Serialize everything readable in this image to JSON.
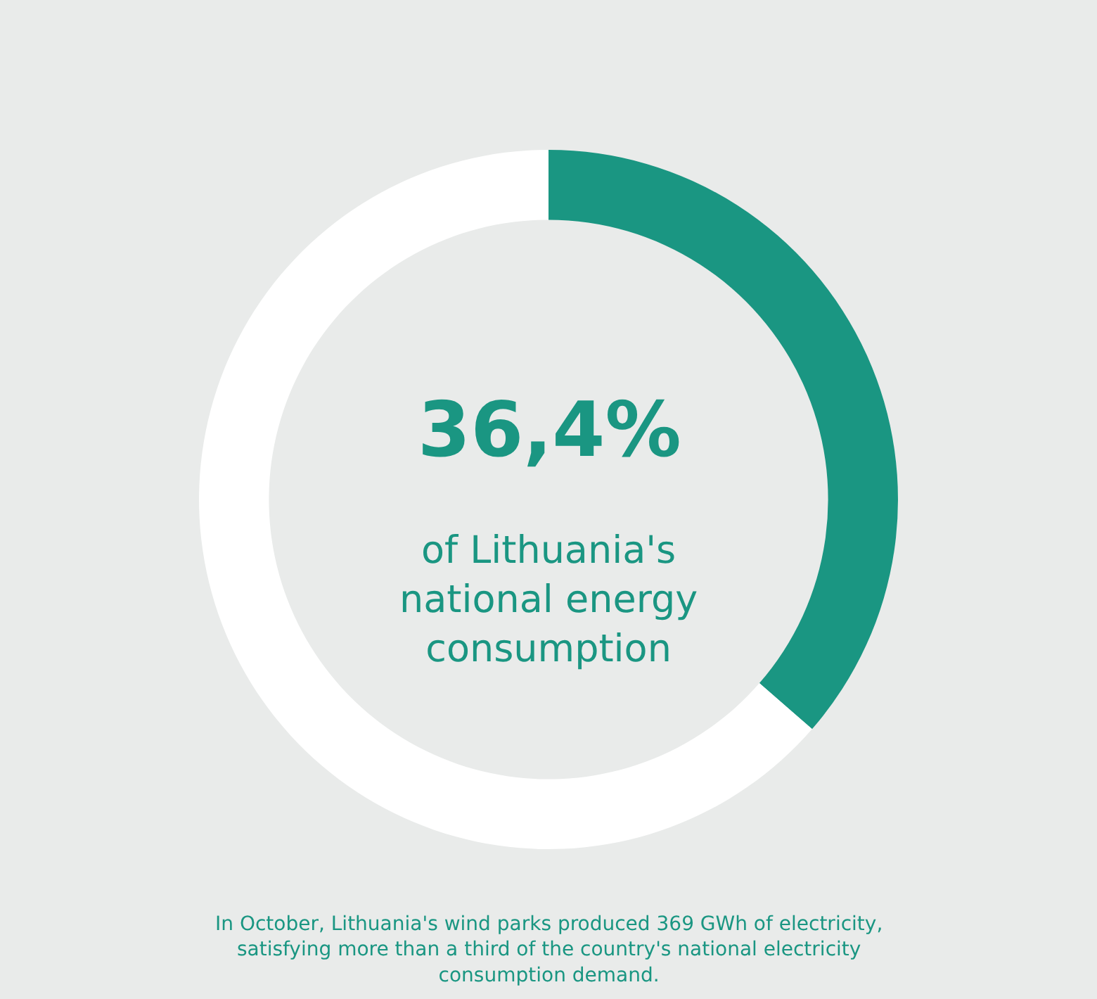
{
  "chart_data": {
    "type": "donut",
    "categories": [
      null,
      null
    ],
    "values": [
      36.4,
      63.6
    ],
    "colors": [
      "#1a9682",
      "#ffffff"
    ],
    "legend": false,
    "annotations": [
      "36,4%",
      "of Lithuania's national energy consumption",
      "In October, Lithuania's wind parks produced 369 GWh of electricity, satisfying more than a third of the country's national electricity consumption demand."
    ]
  }
}
